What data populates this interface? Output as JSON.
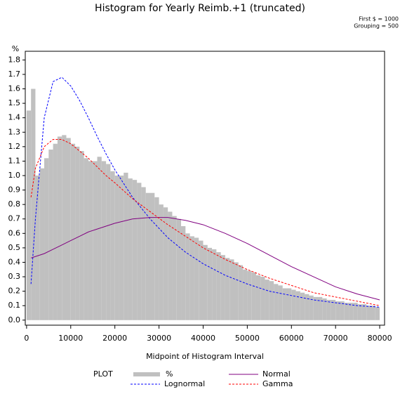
{
  "chart_data": {
    "type": "histogram",
    "title": "Histogram for Yearly Reimb.+1 (truncated)",
    "notes": [
      "First $ = 1000",
      "Grouping = 500"
    ],
    "x_label": "Midpoint of Histogram Interval",
    "y_label": "%",
    "legend_title": "PLOT",
    "name": "%",
    "color": "#c0c0c0",
    "bins": [
      0,
      1000,
      2000,
      3000,
      4000,
      5000,
      6000,
      7000,
      8000,
      9000,
      10000,
      11000,
      12000,
      13000,
      14000,
      15000,
      16000,
      17000,
      18000,
      19000,
      20000,
      21000,
      22000,
      23000,
      24000,
      25000,
      26000,
      27000,
      28000,
      29000,
      30000,
      31000,
      32000,
      33000,
      34000,
      35000,
      36000,
      37000,
      38000,
      39000,
      40000,
      41000,
      42000,
      43000,
      44000,
      45000,
      46000,
      47000,
      48000,
      49000,
      50000,
      51000,
      52000,
      53000,
      54000,
      55000,
      56000,
      57000,
      58000,
      59000,
      60000,
      61000,
      62000,
      63000,
      64000,
      65000,
      66000,
      67000,
      68000,
      69000,
      70000,
      71000,
      72000,
      73000,
      74000,
      75000,
      76000,
      77000,
      78000,
      79000,
      80000
    ],
    "values": [
      1.45,
      1.6,
      1.0,
      1.05,
      1.12,
      1.18,
      1.22,
      1.27,
      1.28,
      1.26,
      1.22,
      1.2,
      1.17,
      1.12,
      1.1,
      1.1,
      1.13,
      1.1,
      1.08,
      1.03,
      1.0,
      1.0,
      1.02,
      0.98,
      0.97,
      0.95,
      0.92,
      0.88,
      0.88,
      0.85,
      0.8,
      0.78,
      0.75,
      0.72,
      0.7,
      0.65,
      0.6,
      0.58,
      0.57,
      0.55,
      0.52,
      0.5,
      0.49,
      0.47,
      0.45,
      0.43,
      0.42,
      0.4,
      0.38,
      0.35,
      0.34,
      0.33,
      0.31,
      0.3,
      0.28,
      0.27,
      0.25,
      0.24,
      0.22,
      0.22,
      0.21,
      0.2,
      0.19,
      0.18,
      0.17,
      0.16,
      0.16,
      0.15,
      0.14,
      0.14,
      0.13,
      0.13,
      0.12,
      0.12,
      0.12,
      0.11,
      0.11,
      0.1,
      0.1,
      0.09
    ],
    "series": [
      {
        "name": "Lognormal",
        "color": "#0000ff",
        "dash": true,
        "x": [
          1000,
          2000,
          4000,
          6000,
          8000,
          10000,
          12000,
          14000,
          16000,
          18000,
          20000,
          24000,
          28000,
          32000,
          36000,
          40000,
          45000,
          50000,
          55000,
          60000,
          65000,
          70000,
          75000,
          80000
        ],
        "values": [
          0.25,
          0.7,
          1.4,
          1.65,
          1.68,
          1.62,
          1.52,
          1.4,
          1.27,
          1.15,
          1.04,
          0.85,
          0.7,
          0.57,
          0.47,
          0.39,
          0.31,
          0.25,
          0.2,
          0.17,
          0.14,
          0.12,
          0.1,
          0.09
        ]
      },
      {
        "name": "Normal",
        "color": "#800080",
        "dash": false,
        "x": [
          1000,
          2000,
          4000,
          6000,
          8000,
          10000,
          12000,
          14000,
          16000,
          18000,
          20000,
          24000,
          28000,
          32000,
          36000,
          40000,
          45000,
          50000,
          55000,
          60000,
          65000,
          70000,
          75000,
          80000
        ],
        "values": [
          0.43,
          0.44,
          0.46,
          0.49,
          0.52,
          0.55,
          0.58,
          0.61,
          0.63,
          0.65,
          0.67,
          0.7,
          0.71,
          0.71,
          0.69,
          0.66,
          0.6,
          0.53,
          0.45,
          0.37,
          0.3,
          0.23,
          0.18,
          0.14
        ]
      },
      {
        "name": "Gamma",
        "color": "#ff0000",
        "dash": true,
        "x": [
          1000,
          2000,
          4000,
          6000,
          8000,
          10000,
          12000,
          14000,
          16000,
          18000,
          20000,
          24000,
          28000,
          32000,
          36000,
          40000,
          45000,
          50000,
          55000,
          60000,
          65000,
          70000,
          75000,
          80000
        ],
        "values": [
          0.85,
          1.05,
          1.2,
          1.25,
          1.25,
          1.22,
          1.17,
          1.12,
          1.06,
          1.0,
          0.95,
          0.84,
          0.75,
          0.66,
          0.58,
          0.5,
          0.42,
          0.35,
          0.29,
          0.24,
          0.19,
          0.16,
          0.13,
          0.1
        ]
      }
    ],
    "xlim": [
      -300,
      81100
    ],
    "ylim": [
      -0.035,
      1.86
    ],
    "xticks": [
      0,
      10000,
      20000,
      30000,
      40000,
      50000,
      60000,
      70000,
      80000
    ],
    "yticks": [
      {
        "value": 0,
        "label": "0.0"
      },
      0.1,
      0.2,
      0.3,
      0.4,
      0.5,
      0.6,
      0.7,
      0.8,
      0.9,
      {
        "value": 1,
        "label": "1.0"
      },
      1.1,
      1.2,
      1.3,
      1.4,
      1.5,
      1.6,
      1.7,
      1.8
    ]
  }
}
